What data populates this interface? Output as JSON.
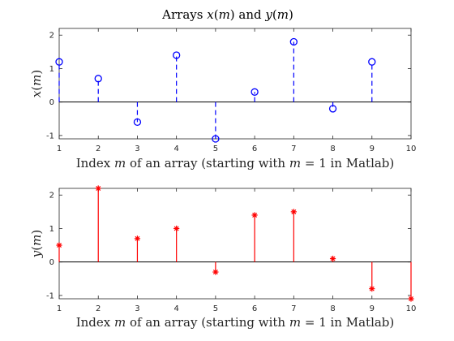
{
  "chart_data": [
    {
      "type": "stem",
      "title_parts": [
        "Arrays ",
        "x",
        "(",
        "m",
        ") and ",
        "y",
        "(",
        "m",
        ")"
      ],
      "xlabel_parts": [
        "Index ",
        "m",
        " of an array (starting with ",
        "m",
        " = 1 in Matlab)"
      ],
      "ylabel_parts": [
        "x",
        "(",
        "m",
        ")"
      ],
      "x": [
        1,
        2,
        3,
        4,
        5,
        6,
        7,
        8,
        9
      ],
      "values": [
        1.2,
        0.7,
        -0.6,
        1.4,
        -1.1,
        0.3,
        1.8,
        -0.2,
        1.2
      ],
      "xlim": [
        1,
        10
      ],
      "ylim": [
        -1.1,
        2.2
      ],
      "xticks": [
        "1",
        "2",
        "3",
        "4",
        "5",
        "6",
        "7",
        "8",
        "9",
        "10"
      ],
      "yticks": [
        "-1",
        "0",
        "1",
        "2"
      ],
      "color": "#0000ff",
      "marker": "circle",
      "line_style": "dashed",
      "grid": false
    },
    {
      "type": "stem",
      "xlabel_parts": [
        "Index ",
        "m",
        " of an array (starting with ",
        "m",
        " = 1 in Matlab)"
      ],
      "ylabel_parts": [
        "y",
        "(",
        "m",
        ")"
      ],
      "x": [
        1,
        2,
        3,
        4,
        5,
        6,
        7,
        8,
        9,
        10
      ],
      "values": [
        0.5,
        2.2,
        0.7,
        1.0,
        -0.3,
        1.4,
        1.5,
        0.1,
        -0.8,
        -1.1
      ],
      "xlim": [
        1,
        10
      ],
      "ylim": [
        -1.1,
        2.2
      ],
      "xticks": [
        "1",
        "2",
        "3",
        "4",
        "5",
        "6",
        "7",
        "8",
        "9",
        "10"
      ],
      "yticks": [
        "-1",
        "0",
        "1",
        "2"
      ],
      "color": "#ff0000",
      "marker": "asterisk",
      "line_style": "solid",
      "grid": false
    }
  ]
}
